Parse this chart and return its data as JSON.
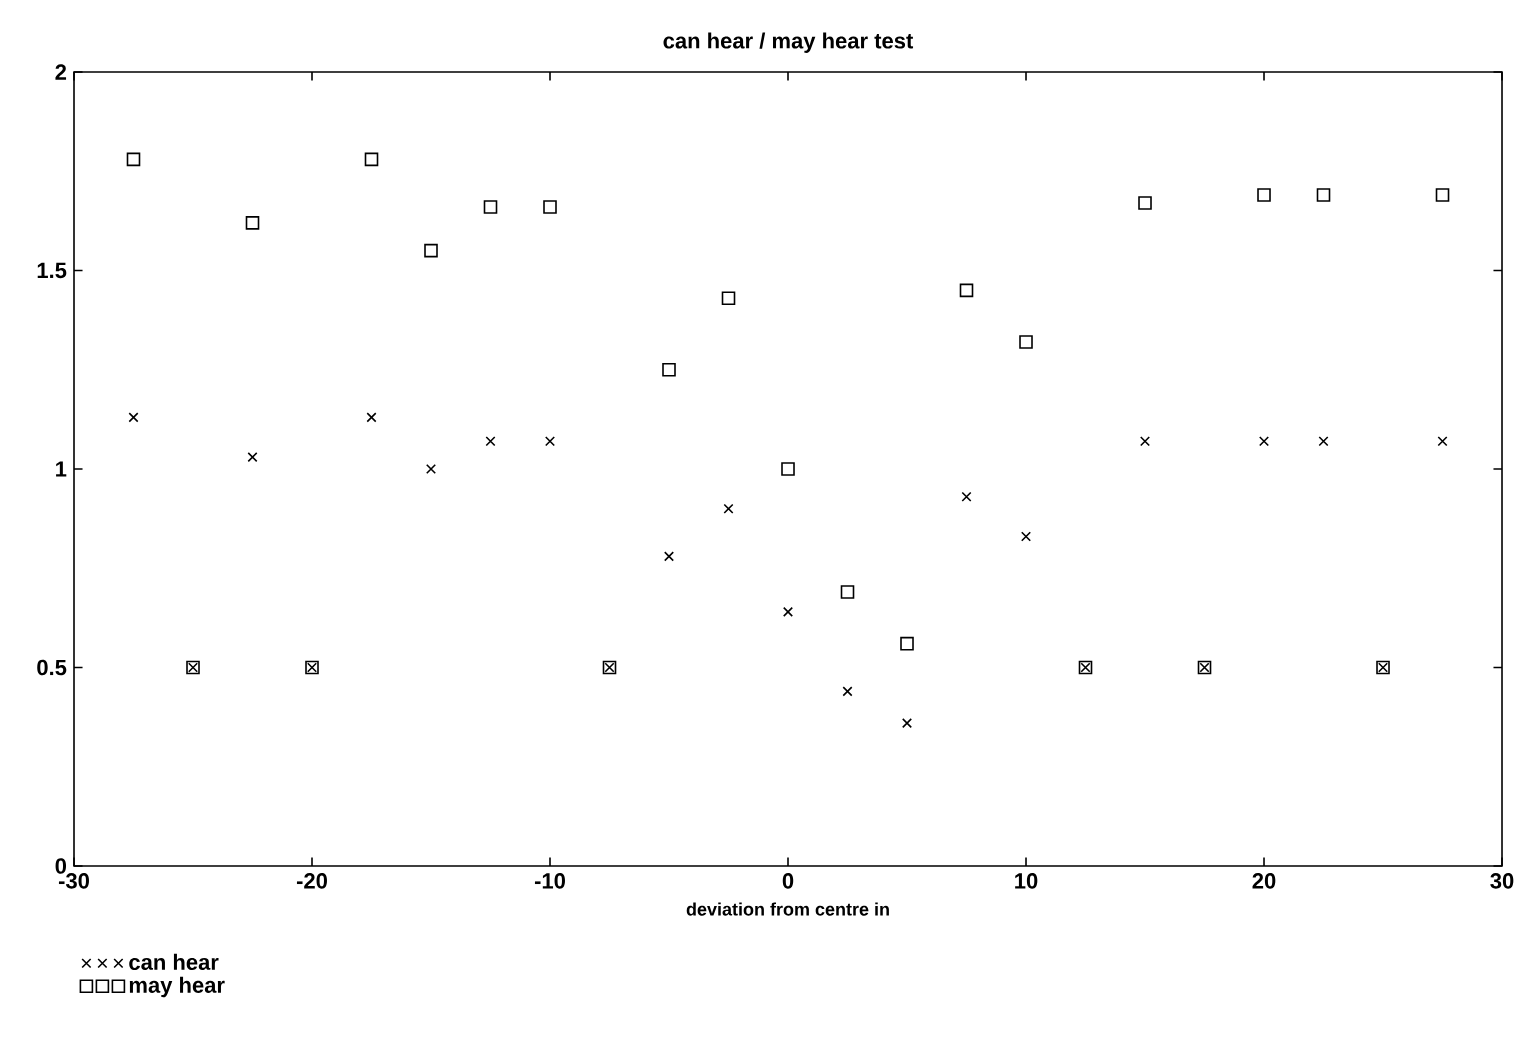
{
  "chart_data": {
    "type": "scatter",
    "title": "can hear / may hear test",
    "xlabel": "deviation from centre in",
    "x": [
      -27.5,
      -25,
      -22.5,
      -20,
      -17.5,
      -15,
      -12.5,
      -10,
      -7.5,
      -5,
      -2.5,
      0,
      2.5,
      5,
      7.5,
      10,
      12.5,
      15,
      17.5,
      20,
      22.5,
      25,
      27.5
    ],
    "series": [
      {
        "name": "can hear",
        "color": "#000000",
        "marker": "cross",
        "values": [
          1.13,
          0.5,
          1.03,
          0.5,
          1.13,
          1.0,
          1.07,
          1.07,
          0.5,
          0.78,
          0.9,
          0.64,
          0.44,
          0.36,
          0.93,
          0.83,
          0.5,
          1.07,
          0.5,
          1.07,
          1.07,
          0.5,
          1.07
        ]
      },
      {
        "name": "may hear",
        "color": "#000000",
        "marker": "square",
        "values": [
          1.78,
          0.5,
          1.62,
          0.5,
          1.78,
          1.55,
          1.66,
          1.66,
          0.5,
          1.25,
          1.43,
          1.0,
          0.69,
          0.56,
          1.45,
          1.32,
          0.5,
          1.67,
          0.5,
          1.69,
          1.69,
          0.5,
          1.69
        ]
      }
    ],
    "xlim": [
      -30,
      30
    ],
    "ylim": [
      0,
      2
    ],
    "xticks": [
      -30,
      -20,
      -10,
      0,
      10,
      20,
      30
    ],
    "yticks": [
      0,
      0.5,
      1,
      1.5,
      2
    ],
    "grid": false,
    "legend": "bottom left"
  }
}
